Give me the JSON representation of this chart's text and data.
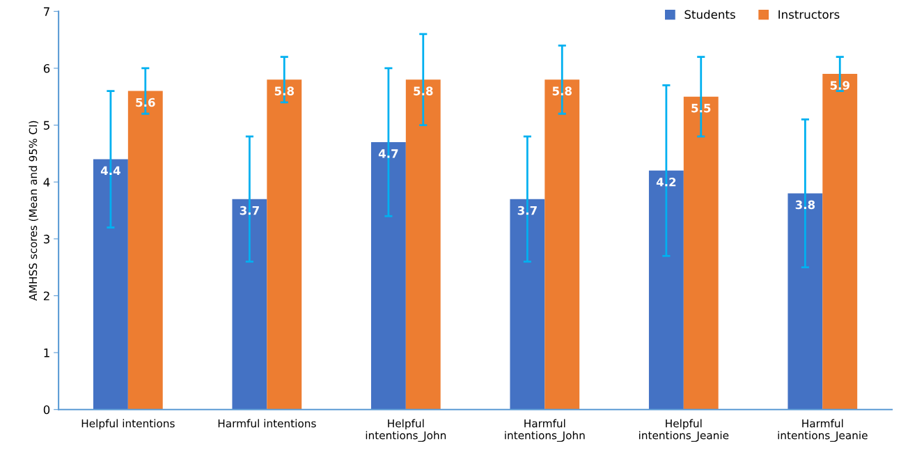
{
  "chart_data": {
    "type": "bar",
    "ylabel": "AMHSS scores (Mean and 95% CI)",
    "categories": [
      "Helpful intentions",
      "Harmful intentions",
      "Helpful\nintentions_John",
      "Harmful\nintentions_John",
      "Helpful\nintentions_Jeanie",
      "Harmful\nintentions_Jeanie"
    ],
    "series": [
      {
        "name": "Students",
        "color": "#4472c4",
        "values": [
          4.4,
          3.7,
          4.7,
          3.7,
          4.2,
          3.8
        ],
        "errors": [
          [
            3.2,
            5.6
          ],
          [
            2.6,
            4.8
          ],
          [
            3.4,
            6.0
          ],
          [
            2.6,
            4.8
          ],
          [
            2.7,
            5.7
          ],
          [
            2.5,
            5.1
          ]
        ]
      },
      {
        "name": "Instructors",
        "color": "#ed7d31",
        "values": [
          5.6,
          5.8,
          5.8,
          5.8,
          5.5,
          5.9
        ],
        "errors": [
          [
            5.2,
            6.0
          ],
          [
            5.4,
            6.2
          ],
          [
            5.0,
            6.6
          ],
          [
            5.2,
            6.4
          ],
          [
            4.8,
            6.2
          ],
          [
            5.6,
            6.2
          ]
        ]
      }
    ],
    "ylim": [
      0,
      7
    ],
    "yticks": [
      0,
      1,
      2,
      3,
      4,
      5,
      6,
      7
    ],
    "grid": false,
    "legend": "top right",
    "data_labels": true
  }
}
